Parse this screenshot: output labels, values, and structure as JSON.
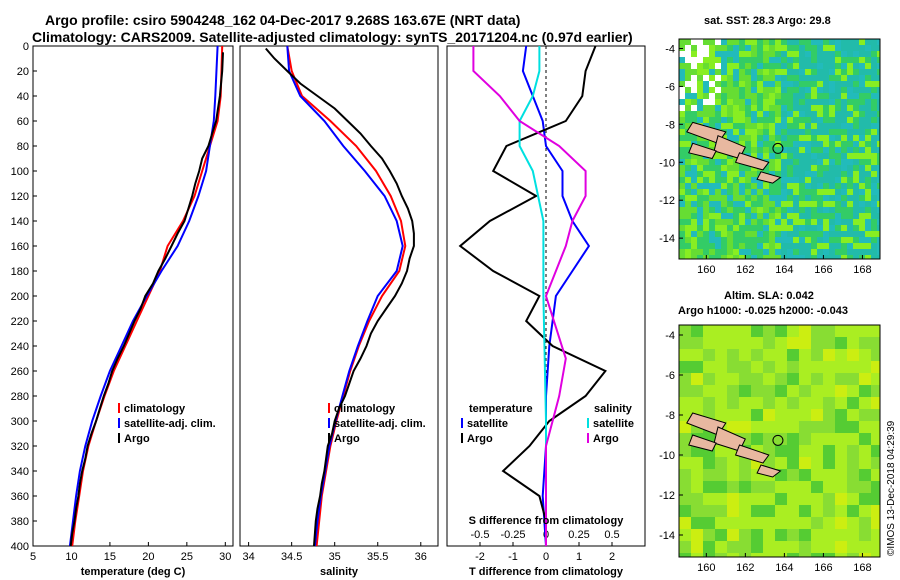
{
  "header": {
    "title_line1": "Argo profile: csiro 5904248_162 04-Dec-2017 9.268S 163.67E (NRT data)",
    "title_line2": "Climatology: CARS2009. Satellite-adjusted climatology: synTS_20171204.nc (0.97d earlier)"
  },
  "maps": {
    "sst_title": "sat. SST: 28.3 Argo: 29.8",
    "sla_title_line1": "Altim. SLA: 0.042",
    "sla_title_line2": "Argo h1000: -0.025 h2000: -0.043",
    "lon_ticks": [
      "160",
      "162",
      "164",
      "166",
      "168"
    ],
    "lat_ticks": [
      "-4",
      "-6",
      "-8",
      "-10",
      "-12",
      "-14"
    ],
    "argo_marker": {
      "lon": 163.67,
      "lat": -9.268
    },
    "lon_range": [
      158.6,
      168.9
    ],
    "lat_range": [
      -15.1,
      -3.5
    ],
    "stamp": "©IMOS 13-Dec-2018 04:29:39"
  },
  "colors": {
    "climatology": "#ff0000",
    "satellite": "#0000ff",
    "argo": "#000000",
    "s_satellite": "#00e0e0",
    "s_argo": "#e000e0"
  },
  "chart_data": [
    {
      "type": "line",
      "name": "temperature",
      "xlabel": "temperature (deg C)",
      "ylabel": "",
      "xlim": [
        5,
        31
      ],
      "ylim": [
        400,
        0
      ],
      "xticks": [
        "5",
        "10",
        "15",
        "20",
        "25",
        "30"
      ],
      "yticks": [
        "0",
        "20",
        "40",
        "60",
        "80",
        "100",
        "120",
        "140",
        "160",
        "180",
        "200",
        "220",
        "240",
        "260",
        "280",
        "300",
        "320",
        "340",
        "360",
        "380",
        "400"
      ],
      "legend": [
        "climatology",
        "satellite-adj. clim.",
        "Argo"
      ],
      "legend_position": "bottom-right",
      "series": [
        {
          "name": "climatology",
          "depth": [
            0,
            40,
            60,
            80,
            100,
            120,
            140,
            160,
            180,
            200,
            220,
            240,
            260,
            280,
            300,
            320,
            340,
            360,
            380,
            400
          ],
          "values": [
            29.6,
            29.4,
            29.0,
            28.0,
            27.0,
            26.0,
            24.5,
            22.5,
            21.5,
            20.0,
            18.5,
            17.0,
            15.5,
            14.3,
            13.2,
            12.2,
            11.5,
            11.0,
            10.5,
            10.1
          ]
        },
        {
          "name": "satellite-adj. clim.",
          "depth": [
            0,
            40,
            60,
            80,
            100,
            120,
            140,
            160,
            180,
            200,
            220,
            240,
            260,
            280,
            300,
            320,
            340,
            360,
            380,
            400
          ],
          "values": [
            29.0,
            28.7,
            28.5,
            28.0,
            27.5,
            26.5,
            25.3,
            23.8,
            21.7,
            19.8,
            18.0,
            16.5,
            15.0,
            13.8,
            12.7,
            11.8,
            11.1,
            10.6,
            10.2,
            9.8
          ]
        },
        {
          "name": "Argo",
          "depth": [
            5,
            20,
            40,
            60,
            70,
            80,
            90,
            100,
            110,
            120,
            130,
            140,
            150,
            160,
            170,
            180,
            190,
            200,
            210,
            220,
            230,
            240,
            250,
            260,
            270,
            280,
            290,
            300,
            310,
            320,
            330,
            340,
            350,
            360,
            370,
            380,
            390,
            400
          ],
          "values": [
            29.7,
            29.6,
            29.3,
            28.8,
            28.3,
            27.8,
            27.0,
            26.6,
            26.1,
            25.7,
            25.2,
            24.7,
            23.8,
            23.0,
            22.2,
            21.3,
            20.6,
            19.6,
            19.0,
            18.2,
            17.5,
            16.8,
            16.0,
            15.3,
            14.8,
            14.2,
            13.7,
            13.2,
            12.6,
            12.1,
            11.8,
            11.4,
            11.1,
            10.9,
            10.6,
            10.4,
            10.1,
            9.9
          ]
        }
      ]
    },
    {
      "type": "line",
      "name": "salinity",
      "xlabel": "salinity",
      "xlim": [
        33.9,
        36.2
      ],
      "ylim": [
        400,
        0
      ],
      "xticks": [
        "34",
        "34.5",
        "35",
        "35.5",
        "36"
      ],
      "legend": [
        "climatology",
        "satellite-adj. clim.",
        "Argo"
      ],
      "legend_position": "bottom-right",
      "series": [
        {
          "name": "climatology",
          "depth": [
            0,
            20,
            40,
            60,
            80,
            100,
            120,
            140,
            160,
            180,
            200,
            220,
            240,
            260,
            280,
            300,
            320,
            340,
            360,
            380,
            400
          ],
          "values": [
            34.45,
            34.5,
            34.62,
            34.95,
            35.25,
            35.48,
            35.65,
            35.77,
            35.82,
            35.75,
            35.55,
            35.4,
            35.28,
            35.18,
            35.1,
            35.02,
            34.95,
            34.9,
            34.85,
            34.82,
            34.79
          ]
        },
        {
          "name": "satellite-adj. clim.",
          "depth": [
            0,
            20,
            40,
            60,
            80,
            100,
            120,
            140,
            160,
            180,
            200,
            220,
            240,
            260,
            280,
            300,
            320,
            340,
            360,
            380,
            400
          ],
          "values": [
            34.45,
            34.47,
            34.6,
            34.88,
            35.1,
            35.35,
            35.58,
            35.72,
            35.79,
            35.72,
            35.5,
            35.38,
            35.27,
            35.17,
            35.09,
            35.01,
            34.94,
            34.89,
            34.84,
            34.8,
            34.77
          ]
        },
        {
          "name": "Argo",
          "depth": [
            2,
            10,
            20,
            30,
            40,
            50,
            60,
            70,
            80,
            90,
            100,
            110,
            120,
            130,
            140,
            150,
            160,
            170,
            180,
            190,
            200,
            210,
            220,
            230,
            240,
            250,
            260,
            270,
            280,
            290,
            300,
            310,
            320,
            330,
            340,
            350,
            360,
            370,
            380,
            390,
            400
          ],
          "values": [
            34.2,
            34.3,
            34.45,
            34.6,
            34.8,
            35.0,
            35.15,
            35.3,
            35.42,
            35.55,
            35.64,
            35.72,
            35.78,
            35.85,
            35.9,
            35.92,
            35.92,
            35.87,
            35.84,
            35.78,
            35.7,
            35.6,
            35.5,
            35.42,
            35.37,
            35.3,
            35.22,
            35.17,
            35.12,
            35.05,
            35.0,
            34.97,
            34.92,
            34.9,
            34.88,
            34.85,
            34.83,
            34.8,
            34.78,
            34.77,
            34.76
          ]
        }
      ]
    },
    {
      "type": "line",
      "name": "difference",
      "xlabel": "T difference from climatology",
      "xlabel2": "S difference from climatology",
      "xlim": [
        -3,
        3
      ],
      "ylim": [
        400,
        0
      ],
      "xticks": [
        "-2",
        "-1",
        "0",
        "1",
        "2"
      ],
      "xticks2": [
        "-0.5",
        "-0.25",
        "0",
        "0.25",
        "0.5"
      ],
      "legend_temperature": [
        "temperature",
        "satellite",
        "Argo"
      ],
      "legend_salinity": [
        "salinity",
        "satellite",
        "Argo"
      ],
      "series": [
        {
          "name": "T satellite",
          "depth": [
            0,
            20,
            40,
            60,
            80,
            100,
            120,
            140,
            160,
            180,
            200,
            240,
            280,
            320,
            360,
            400
          ],
          "values": [
            -0.6,
            -0.7,
            -0.4,
            -0.1,
            0.0,
            0.5,
            0.5,
            0.8,
            1.3,
            0.8,
            0.3,
            0.1,
            0.0,
            0.0,
            -0.1,
            0.0
          ]
        },
        {
          "name": "T Argo",
          "depth": [
            0,
            20,
            40,
            60,
            80,
            100,
            120,
            140,
            160,
            180,
            200,
            220,
            240,
            260,
            280,
            300,
            320,
            340,
            360,
            380,
            400
          ],
          "values": [
            1.5,
            1.2,
            1.1,
            0.6,
            -1.2,
            -1.6,
            -0.3,
            -1.7,
            -2.6,
            -1.6,
            -0.2,
            -0.6,
            0.2,
            1.8,
            1.2,
            0.1,
            -0.5,
            -1.3,
            -0.2,
            0.0,
            0.0
          ]
        },
        {
          "name": "S satellite",
          "depth": [
            0,
            20,
            40,
            60,
            80,
            100,
            140,
            200,
            300,
            400
          ],
          "values": [
            -0.05,
            -0.05,
            -0.1,
            -0.2,
            -0.2,
            -0.1,
            -0.02,
            -0.02,
            0.0,
            0.0
          ]
        },
        {
          "name": "S Argo",
          "depth": [
            0,
            20,
            40,
            60,
            80,
            100,
            120,
            140,
            160,
            200,
            250,
            280,
            300,
            320,
            350,
            400
          ],
          "values": [
            -0.55,
            -0.55,
            -0.35,
            -0.2,
            0.1,
            0.3,
            0.3,
            0.2,
            0.15,
            0.0,
            0.15,
            0.1,
            0.05,
            0.0,
            0.0,
            0.0
          ]
        }
      ]
    }
  ]
}
